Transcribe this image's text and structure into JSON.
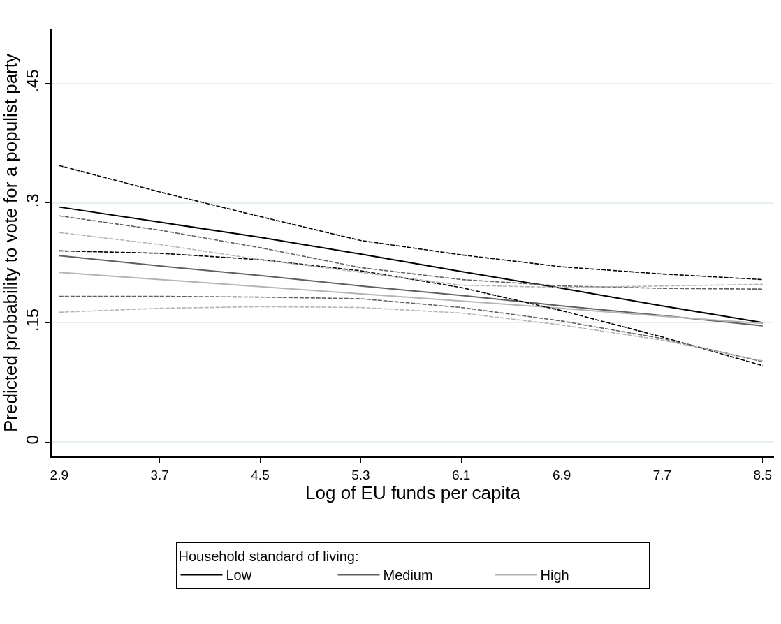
{
  "chart_data": {
    "type": "line",
    "xlabel": "Log of EU funds per capita",
    "ylabel": "Predicted probability to vote for a populist party",
    "legend_title": "Household standard of living:",
    "x": [
      2.9,
      3.7,
      4.5,
      5.3,
      6.1,
      6.9,
      7.7,
      8.5
    ],
    "series": [
      {
        "name": "Low",
        "color": "#000000",
        "values": [
          0.295,
          0.276,
          0.257,
          0.236,
          0.214,
          0.193,
          0.171,
          0.15
        ]
      },
      {
        "name": "Medium",
        "color": "#606060",
        "values": [
          0.234,
          0.221,
          0.209,
          0.196,
          0.184,
          0.171,
          0.159,
          0.146
        ]
      },
      {
        "name": "High",
        "color": "#b4b4b4",
        "values": [
          0.213,
          0.204,
          0.195,
          0.186,
          0.177,
          0.168,
          0.158,
          0.149
        ]
      },
      {
        "color": "#000000",
        "line_style": "dashed",
        "values": [
          0.347,
          0.314,
          0.283,
          0.253,
          0.235,
          0.22,
          0.211,
          0.204
        ]
      },
      {
        "color": "#000000",
        "line_style": "dashed",
        "values": [
          0.24,
          0.237,
          0.229,
          0.215,
          0.194,
          0.165,
          0.132,
          0.096
        ]
      },
      {
        "color": "#606060",
        "line_style": "dashed",
        "values": [
          0.284,
          0.266,
          0.244,
          0.219,
          0.204,
          0.196,
          0.193,
          0.192
        ]
      },
      {
        "color": "#606060",
        "line_style": "dashed",
        "values": [
          0.183,
          0.183,
          0.182,
          0.18,
          0.169,
          0.152,
          0.13,
          0.101
        ]
      },
      {
        "color": "#b4b4b4",
        "line_style": "dashed",
        "values": [
          0.263,
          0.248,
          0.229,
          0.213,
          0.197,
          0.194,
          0.196,
          0.198
        ]
      },
      {
        "color": "#b4b4b4",
        "line_style": "dashed",
        "values": [
          0.163,
          0.168,
          0.17,
          0.169,
          0.162,
          0.147,
          0.128,
          0.102
        ]
      }
    ],
    "xlim": [
      2.84,
      8.59
    ],
    "xticks": [
      2.9,
      3.7,
      4.5,
      5.3,
      6.1,
      6.9,
      7.7,
      8.5
    ],
    "ylim": [
      -0.018,
      0.518
    ],
    "yticks": [
      {
        "value": 0,
        "label": "0"
      },
      {
        "value": 0.15,
        "label": ".15"
      },
      {
        "value": 0.3,
        "label": ".3"
      },
      {
        "value": 0.45,
        "label": ".45"
      }
    ],
    "grid": "y",
    "legend": "bottom",
    "line_style": "solid",
    "marker": "none"
  }
}
